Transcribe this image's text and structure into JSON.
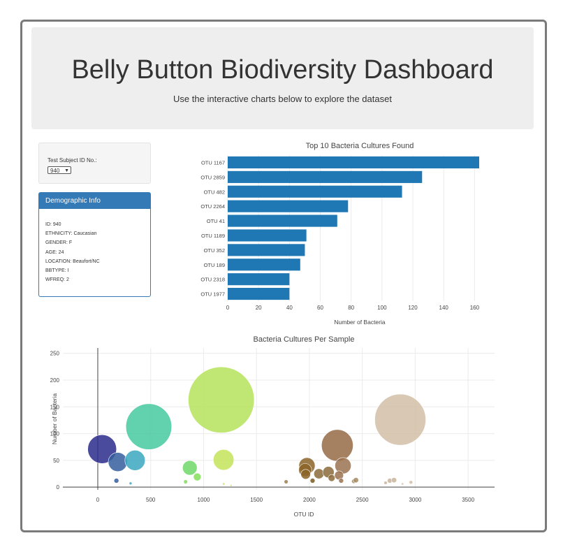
{
  "header": {
    "title": "Belly Button Biodiversity Dashboard",
    "subtitle": "Use the interactive charts below to explore the dataset"
  },
  "selector": {
    "label": "Test Subject ID No.:",
    "selected": "940"
  },
  "demographics": {
    "heading": "Demographic Info",
    "rows": [
      "ID: 940",
      "ETHNICITY: Caucasian",
      "GENDER: F",
      "AGE: 24",
      "LOCATION: Beaufort/NC",
      "BBTYPE: I",
      "WFREQ: 2"
    ]
  },
  "colors": {
    "bar": "#1f77b4",
    "panel_header": "#337ab7"
  },
  "chart_data": [
    {
      "type": "bar",
      "orientation": "horizontal",
      "title": "Top 10 Bacteria Cultures Found",
      "xlabel": "Number of Bacteria",
      "ylabel": "",
      "xlim": [
        0,
        163
      ],
      "xticks": [
        0,
        20,
        40,
        60,
        80,
        100,
        120,
        140,
        160
      ],
      "categories": [
        "OTU 1167",
        "OTU 2859",
        "OTU 482",
        "OTU 2264",
        "OTU 41",
        "OTU 1189",
        "OTU 352",
        "OTU 189",
        "OTU 2318",
        "OTU 1977"
      ],
      "values": [
        163,
        126,
        113,
        78,
        71,
        51,
        50,
        47,
        40,
        40
      ],
      "grid": true
    },
    {
      "type": "scatter",
      "style": "bubble",
      "title": "Bacteria Cultures Per Sample",
      "xlabel": "OTU ID",
      "ylabel": "Number of Bacteria",
      "xlim": [
        -330,
        3750
      ],
      "ylim": [
        -5,
        260
      ],
      "xticks": [
        0,
        500,
        1000,
        1500,
        2000,
        2500,
        3000,
        3500
      ],
      "yticks": [
        0,
        50,
        100,
        150,
        200,
        250
      ],
      "grid": true,
      "points": [
        {
          "x": 41,
          "y": 71,
          "color": "#2c2c8c"
        },
        {
          "x": 189,
          "y": 47,
          "color": "#355f9e"
        },
        {
          "x": 352,
          "y": 50,
          "color": "#3aa7c0"
        },
        {
          "x": 482,
          "y": 113,
          "color": "#47c9a0"
        },
        {
          "x": 176,
          "y": 12,
          "color": "#355f9e"
        },
        {
          "x": 310,
          "y": 7,
          "color": "#3aa7c0"
        },
        {
          "x": 870,
          "y": 36,
          "color": "#6fd86a"
        },
        {
          "x": 940,
          "y": 19,
          "color": "#84de5c"
        },
        {
          "x": 830,
          "y": 10,
          "color": "#84de5c"
        },
        {
          "x": 1167,
          "y": 163,
          "color": "#b5e35a"
        },
        {
          "x": 1189,
          "y": 51,
          "color": "#c4e35a"
        },
        {
          "x": 1190,
          "y": 6,
          "color": "#d6e46c"
        },
        {
          "x": 1260,
          "y": 3,
          "color": "#e0e190"
        },
        {
          "x": 1780,
          "y": 10,
          "color": "#a08050"
        },
        {
          "x": 1977,
          "y": 40,
          "color": "#8b6428"
        },
        {
          "x": 1960,
          "y": 32,
          "color": "#8b6428"
        },
        {
          "x": 1965,
          "y": 24,
          "color": "#8b6428"
        },
        {
          "x": 2030,
          "y": 12,
          "color": "#7a5a20"
        },
        {
          "x": 2090,
          "y": 25,
          "color": "#8b6a3a"
        },
        {
          "x": 2180,
          "y": 28,
          "color": "#8b6a3a"
        },
        {
          "x": 2210,
          "y": 17,
          "color": "#8b6a3a"
        },
        {
          "x": 2264,
          "y": 78,
          "color": "#956a45"
        },
        {
          "x": 2318,
          "y": 40,
          "color": "#9a7250"
        },
        {
          "x": 2280,
          "y": 22,
          "color": "#9a7250"
        },
        {
          "x": 2300,
          "y": 12,
          "color": "#9a7250"
        },
        {
          "x": 2420,
          "y": 11,
          "color": "#a68860"
        },
        {
          "x": 2440,
          "y": 13,
          "color": "#a68860"
        },
        {
          "x": 2720,
          "y": 8,
          "color": "#c8b49a"
        },
        {
          "x": 2760,
          "y": 12,
          "color": "#c8b49a"
        },
        {
          "x": 2800,
          "y": 13,
          "color": "#c8b49a"
        },
        {
          "x": 2859,
          "y": 126,
          "color": "#d2bea6"
        },
        {
          "x": 2960,
          "y": 9,
          "color": "#d2bea6"
        },
        {
          "x": 2880,
          "y": 6,
          "color": "#d9c9b4"
        }
      ]
    }
  ]
}
